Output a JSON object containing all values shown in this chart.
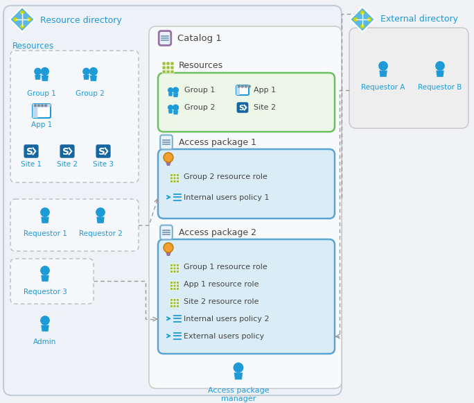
{
  "bg_outer": "#f0f2f5",
  "bg_resdir": "#f0f4f8",
  "bg_white": "#ffffff",
  "bg_catalog": "#ffffff",
  "bg_green": "#e8f5e0",
  "bg_blue_pkg": "#daedf7",
  "bg_extdir": "#eeeeee",
  "border_resdir": "#c8d8e8",
  "border_dashed": "#aaaaaa",
  "border_green": "#6abf5e",
  "border_blue": "#5ba3d0",
  "border_purple": "#9673a6",
  "border_catalog": "#dddddd",
  "icon_blue": "#1e9ad6",
  "icon_blue2": "#2fa0d0",
  "icon_blue_dark": "#1566a0",
  "icon_green": "#9dc03b",
  "icon_orange": "#f0a030",
  "icon_purple": "#9673a6",
  "text_blue": "#1e9ad6",
  "text_dark": "#444444",
  "arrow_color": "#999999",
  "title_resdir": "Resource directory",
  "title_extdir": "External directory",
  "label_resources": "Resources",
  "label_catalog": "Catalog 1",
  "label_ap1": "Access package 1",
  "label_ap2": "Access package 2",
  "label_apm": "Access package\nmanager"
}
